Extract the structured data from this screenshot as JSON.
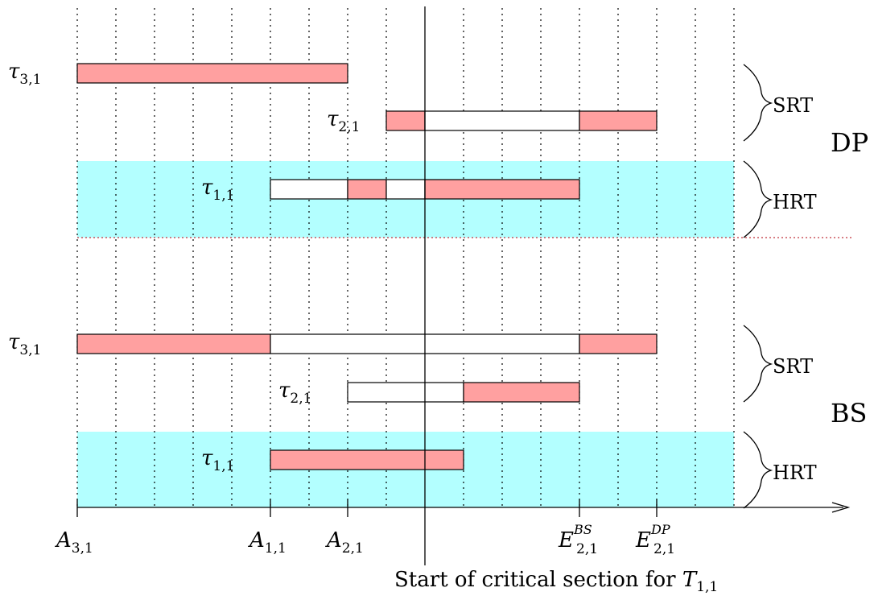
{
  "colors": {
    "hrt_band": "#b3ffff",
    "executing": "#ffa0a0",
    "waiting": "#ffffff",
    "outline": "#000000",
    "divider": "#c0303a"
  },
  "sections": [
    {
      "label": "DP",
      "tasks": [
        {
          "symbol": "τ",
          "sub": "3,1",
          "segments": [
            {
              "from": 0,
              "to": 7,
              "state": "executing"
            }
          ]
        },
        {
          "symbol": "τ",
          "sub": "2,1",
          "segments": [
            {
              "from": 8,
              "to": 9,
              "state": "executing"
            },
            {
              "from": 9,
              "to": 13,
              "state": "waiting"
            },
            {
              "from": 13,
              "to": 15,
              "state": "executing"
            }
          ]
        },
        {
          "symbol": "τ",
          "sub": "1,1",
          "segments": [
            {
              "from": 5,
              "to": 7,
              "state": "waiting"
            },
            {
              "from": 7,
              "to": 8,
              "state": "executing"
            },
            {
              "from": 8,
              "to": 9,
              "state": "waiting"
            },
            {
              "from": 9,
              "to": 13,
              "state": "executing"
            }
          ]
        }
      ],
      "groups": [
        "SRT",
        "HRT"
      ]
    },
    {
      "label": "BS",
      "tasks": [
        {
          "symbol": "τ",
          "sub": "3,1",
          "segments": [
            {
              "from": 0,
              "to": 5,
              "state": "executing"
            },
            {
              "from": 5,
              "to": 13,
              "state": "waiting"
            },
            {
              "from": 13,
              "to": 15,
              "state": "executing"
            }
          ]
        },
        {
          "symbol": "τ",
          "sub": "2,1",
          "segments": [
            {
              "from": 7,
              "to": 10,
              "state": "waiting"
            },
            {
              "from": 10,
              "to": 13,
              "state": "executing"
            }
          ]
        },
        {
          "symbol": "τ",
          "sub": "1,1",
          "segments": [
            {
              "from": 5,
              "to": 10,
              "state": "executing"
            }
          ]
        }
      ],
      "groups": [
        "SRT",
        "HRT"
      ]
    }
  ],
  "time_markers": [
    {
      "t": 0,
      "symbol": "A",
      "sub": "3,1",
      "sup": ""
    },
    {
      "t": 5,
      "symbol": "A",
      "sub": "1,1",
      "sup": ""
    },
    {
      "t": 7,
      "symbol": "A",
      "sub": "2,1",
      "sup": ""
    },
    {
      "t": 13,
      "symbol": "E",
      "sub": "2,1",
      "sup": "BS"
    },
    {
      "t": 15,
      "symbol": "E",
      "sub": "2,1",
      "sup": "DP"
    }
  ],
  "critical_section": {
    "t": 9,
    "text": "Start of critical section for ",
    "symbol": "T",
    "sub": "1,1"
  }
}
